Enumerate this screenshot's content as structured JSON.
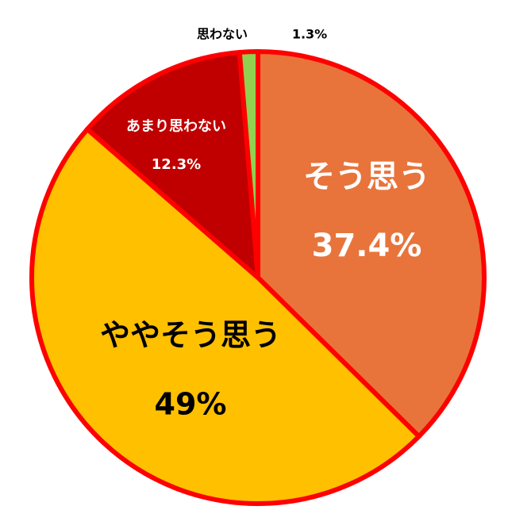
{
  "chart_data": {
    "type": "pie",
    "categories": [
      "そう思う",
      "ややそう思う",
      "あまり思わない",
      "思わない"
    ],
    "values": [
      37.4,
      49,
      12.3,
      1.3
    ],
    "value_labels": [
      "37.4%",
      "49%",
      "12.3%",
      "1.3%"
    ],
    "colors": [
      "#e8743b",
      "#ffc000",
      "#c00000",
      "#92d050"
    ],
    "border_color": "#ff0000"
  }
}
